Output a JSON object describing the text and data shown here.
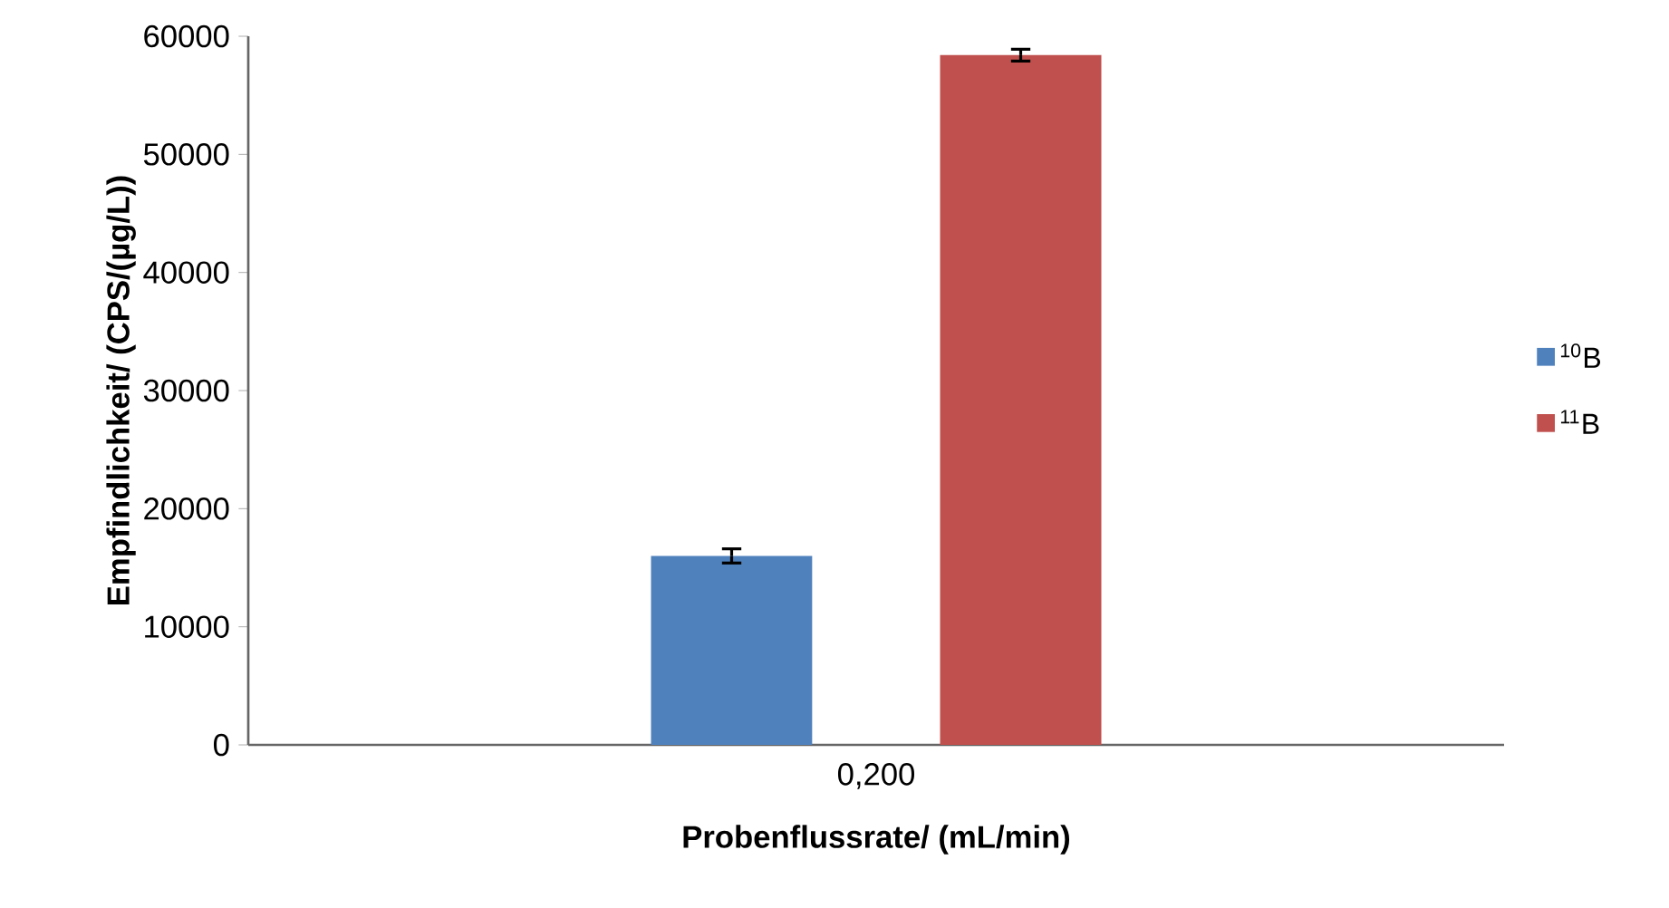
{
  "chart_data": {
    "type": "bar",
    "xlabel": "Probenflussrate/ (mL/min)",
    "ylabel": "Empfindlichkeit/ (CPS/(µg/L))",
    "categories": [
      "0,200"
    ],
    "series": [
      {
        "name": "$^{10}$B",
        "color": "#4f81bd",
        "values": [
          16000
        ],
        "errors": [
          600
        ]
      },
      {
        "name": "$^{11}$B",
        "color": "#c0504d",
        "values": [
          58400
        ],
        "errors": [
          500
        ]
      }
    ],
    "ylim": [
      0,
      60000
    ],
    "yticks": [
      0,
      10000,
      20000,
      30000,
      40000,
      50000,
      60000
    ],
    "grid": false,
    "legend": "right"
  }
}
